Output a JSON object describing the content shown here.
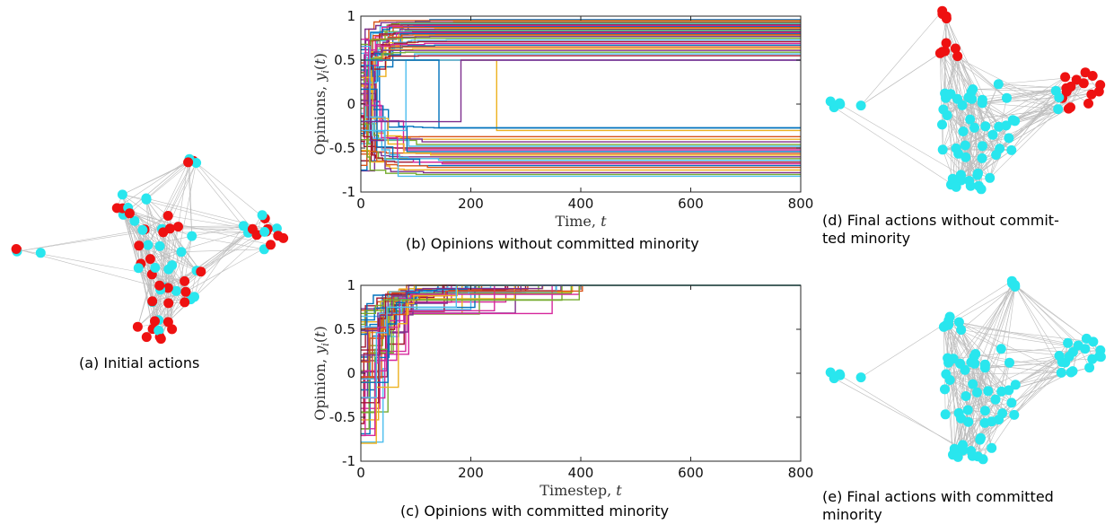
{
  "captions": {
    "a": "(a) Initial actions",
    "b": "(b) Opinions without committed minority",
    "c": "(c) Opinions with committed minority",
    "d_line1": "(d) Final actions without commit-",
    "d_line2": "ted minority",
    "e_line1": "(e) Final actions with committed",
    "e_line2": "minority"
  },
  "colors": {
    "node_cyan": "#29e6ee",
    "node_red": "#ee1111",
    "edge": "#bdbdbd",
    "palette": [
      "#0072bd",
      "#d95319",
      "#edb120",
      "#7e2f8e",
      "#77ac30",
      "#4dbeee",
      "#a2142f",
      "#d6279c"
    ]
  },
  "chart_data": [
    {
      "type": "line",
      "title": "",
      "xlabel": "Time, t",
      "ylabel": "Opinions, y_i(t)",
      "xlim": [
        0,
        800
      ],
      "ylim": [
        -1,
        1
      ],
      "xticks": [
        "0",
        "200",
        "400",
        "600",
        "800"
      ],
      "yticks": [
        "-1",
        "-0.5",
        "0",
        "0.5",
        "1"
      ],
      "grid": false,
      "step": true,
      "final_opinions_upper": [
        0.96,
        0.95,
        0.94,
        0.93,
        0.92,
        0.91,
        0.9,
        0.89,
        0.88,
        0.87,
        0.86,
        0.85,
        0.84,
        0.83,
        0.82,
        0.81,
        0.8,
        0.79,
        0.78,
        0.77,
        0.75,
        0.73,
        0.71,
        0.69,
        0.67,
        0.65,
        0.63,
        0.61,
        0.59,
        0.57,
        0.55,
        0.5
      ],
      "final_opinions_lower": [
        -0.27,
        -0.37,
        -0.4,
        -0.43,
        -0.46,
        -0.48,
        -0.5,
        -0.52,
        -0.54,
        -0.56,
        -0.58,
        -0.6,
        -0.62,
        -0.64,
        -0.66,
        -0.68,
        -0.7,
        -0.72,
        -0.75,
        -0.78,
        -0.8,
        -0.82
      ],
      "switch_examples": [
        {
          "from": 0.5,
          "to": -0.3,
          "at": 245
        },
        {
          "from": -0.3,
          "to": 0.5,
          "at": 80
        },
        {
          "from": 0.5,
          "to": -0.27,
          "at": 140
        },
        {
          "from": -0.2,
          "to": 0.5,
          "at": 180
        }
      ]
    },
    {
      "type": "line",
      "title": "",
      "xlabel": "Timestep, t",
      "ylabel": "Opinion, y_i(t)",
      "xlim": [
        0,
        800
      ],
      "ylim": [
        -1,
        1
      ],
      "xticks": [
        "0",
        "200",
        "400",
        "600",
        "800"
      ],
      "yticks": [
        "-1",
        "-0.5",
        "0",
        "0.5",
        "1"
      ],
      "grid": false,
      "step": true,
      "converged_value": 1,
      "convergence_time": 420
    }
  ],
  "graphs": {
    "a": {
      "label": "Initial actions"
    },
    "d": {
      "label": "Final actions without committed minority"
    },
    "e": {
      "label": "Final actions with committed minority"
    }
  }
}
